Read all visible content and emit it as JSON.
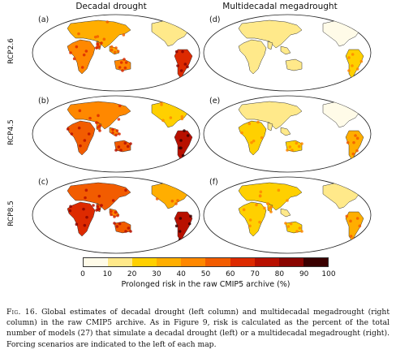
{
  "columns": [
    "Decadal drought",
    "Multidecadal megadrought"
  ],
  "rows": [
    "RCP2.6",
    "RCP4.5",
    "RCP8.5"
  ],
  "panels": {
    "a": "(a)",
    "b": "(b)",
    "c": "(c)",
    "d": "(d)",
    "e": "(e)",
    "f": "(f)"
  },
  "colorbar": {
    "ticks": [
      "0",
      "10",
      "20",
      "30",
      "40",
      "50",
      "60",
      "70",
      "80",
      "90",
      "100"
    ],
    "label": "Prolonged risk in the raw CMIP5 archive (%)",
    "colors": [
      "#fffbe8",
      "#ffe98a",
      "#ffd000",
      "#ffae00",
      "#ff8800",
      "#f25c00",
      "#dd2a00",
      "#b81000",
      "#8a0500",
      "#3a0000"
    ]
  },
  "caption": {
    "fig": "Fig. 16.",
    "text": "Global estimates of decadal drought (left column) and multidecadal megadrought (right column) in the raw CMIP5 archive. As in Figure 9, risk is calculated as the percent of the total number of models (27) that simulate a decadal drought (left) or a multidecadal megadrought (right). Forcing scenarios are indicated to the left of each map."
  }
}
